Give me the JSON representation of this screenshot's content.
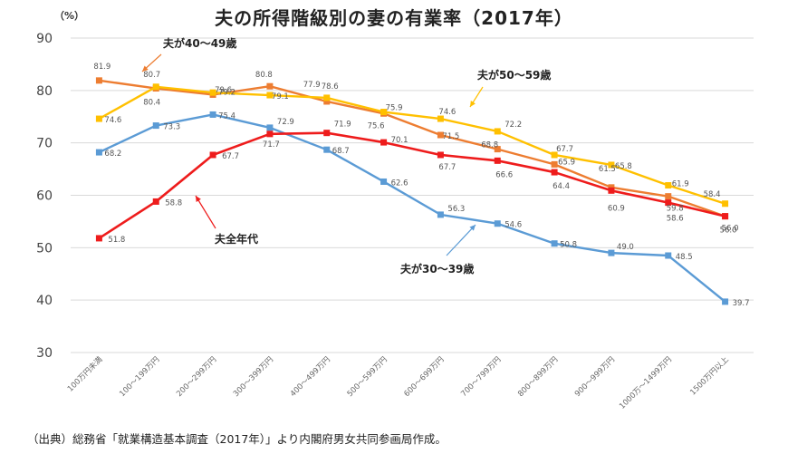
{
  "title": "夫の所得階級別の妻の有業率（2017年）",
  "source_note": "（出典）総務省「就業構造基本調査（2017年）」より内閣府男女共同参画局作成。",
  "chart_data": {
    "type": "line",
    "title": "夫の所得階級別の妻の有業率（2017年）",
    "ylabel": "（%）",
    "xlabel": "",
    "ylim": [
      30,
      90
    ],
    "yticks": [
      30,
      40,
      50,
      60,
      70,
      80,
      90
    ],
    "categories": [
      "100万円未満",
      "100～199万円",
      "200～299万円",
      "300～399万円",
      "400～499万円",
      "500～599万円",
      "600～699万円",
      "700～799万円",
      "800～899万円",
      "900～999万円",
      "1000万～1499万円",
      "1500万円以上"
    ],
    "series": [
      {
        "name": "夫全年代",
        "color": "#ee1c1c",
        "values": [
          51.8,
          58.8,
          67.7,
          71.7,
          71.9,
          70.1,
          67.7,
          66.6,
          64.4,
          60.9,
          58.6,
          56.0
        ]
      },
      {
        "name": "夫が30～39歳",
        "color": "#5b9bd5",
        "values": [
          68.2,
          73.3,
          75.4,
          72.9,
          68.7,
          62.6,
          56.3,
          54.6,
          50.8,
          49.0,
          48.5,
          39.7
        ]
      },
      {
        "name": "夫が40～49歳",
        "color": "#ed7d31",
        "values": [
          81.9,
          80.4,
          79.2,
          80.8,
          77.9,
          75.6,
          71.5,
          68.8,
          65.9,
          61.5,
          59.8,
          56.0
        ]
      },
      {
        "name": "夫が50～59歳",
        "color": "#ffc000",
        "values": [
          74.6,
          80.7,
          79.6,
          79.1,
          78.6,
          75.9,
          74.6,
          72.2,
          67.7,
          65.8,
          61.9,
          58.4
        ]
      }
    ],
    "annotations": [
      "夫が40～49歳",
      "夫が50～59歳",
      "夫全年代",
      "夫が30～39歳"
    ]
  }
}
